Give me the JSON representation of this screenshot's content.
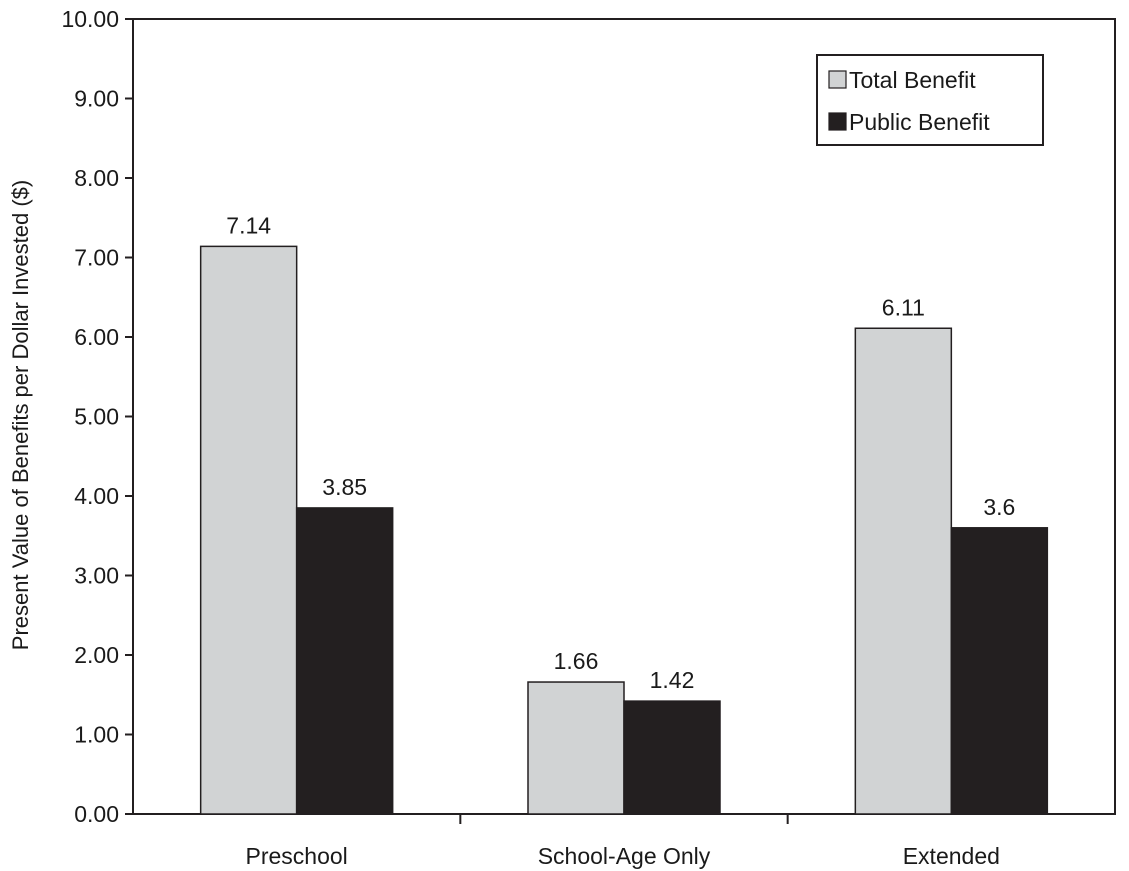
{
  "chart_data": {
    "type": "bar",
    "categories": [
      "Preschool",
      "School-Age Only",
      "Extended"
    ],
    "series": [
      {
        "name": "Total Benefit",
        "values": [
          7.14,
          1.66,
          6.11
        ],
        "labels": [
          "7.14",
          "1.66",
          "6.11"
        ],
        "color": "#d1d3d4"
      },
      {
        "name": "Public Benefit",
        "values": [
          3.85,
          1.42,
          3.6
        ],
        "labels": [
          "3.85",
          "1.42",
          "3.6"
        ],
        "color": "#231f20"
      }
    ],
    "title": "",
    "xlabel": "",
    "ylabel": "Present Value of Benefits per Dollar Invested ($)",
    "ylim": [
      0,
      10
    ],
    "yticks": [
      "0.00",
      "1.00",
      "2.00",
      "3.00",
      "4.00",
      "5.00",
      "6.00",
      "7.00",
      "8.00",
      "9.00",
      "10.00"
    ],
    "grid": false,
    "legend_position": "top-right"
  }
}
